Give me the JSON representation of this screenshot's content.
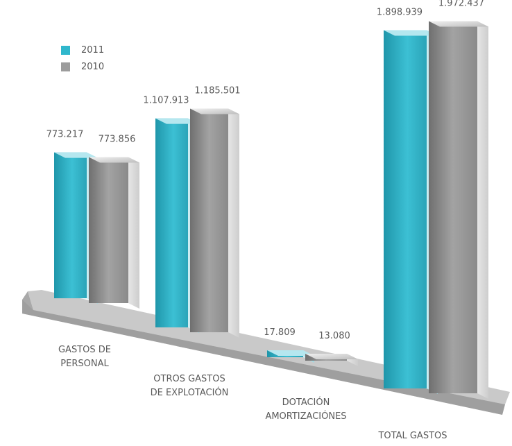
{
  "chart_data": {
    "type": "bar",
    "categories": [
      [
        "GASTOS DE",
        "PERSONAL"
      ],
      [
        "OTROS GASTOS",
        "DE EXPLOTACIÓN"
      ],
      [
        "DOTACIÓN",
        "AMORTIZACIÓNES"
      ],
      [
        "TOTAL GASTOS"
      ]
    ],
    "series": [
      {
        "name": "2011",
        "values": [
          773217,
          1107913,
          17809,
          1898939
        ],
        "labels": [
          "773.217",
          "1.107.913",
          "17.809",
          "1.898.939"
        ],
        "color": "#2fb7cc"
      },
      {
        "name": "2010",
        "values": [
          773856,
          1185501,
          13080,
          1972437
        ],
        "labels": [
          "773.856",
          "1.185.501",
          "13.080",
          "1.972.437"
        ],
        "color": "#9c9c9c"
      }
    ],
    "ylim": [
      0,
      2000000
    ],
    "legend_position": "top-left",
    "grid": false
  },
  "colors": {
    "platform_top": "#c9c9c9",
    "platform_front": "#a9a9a9"
  }
}
